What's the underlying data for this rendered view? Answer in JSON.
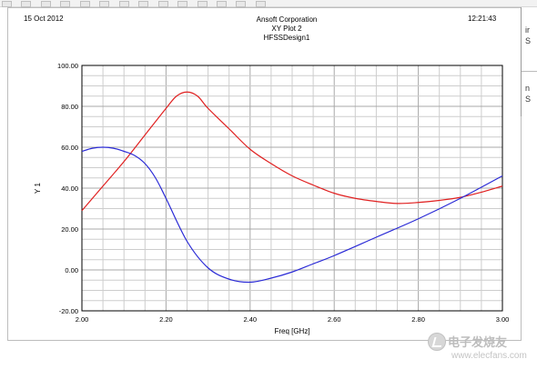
{
  "header": {
    "date": "15 Oct 2012",
    "time": "12:21:43",
    "company": "Ansoft Corporation",
    "plot_name": "XY Plot 2",
    "design_name": "HFSSDesign1"
  },
  "side_panel": {
    "lines": [
      "ir",
      "S",
      "n",
      "S"
    ]
  },
  "watermark": {
    "name": "电子发烧友",
    "url": "www.elecfans.com"
  },
  "chart_data": {
    "type": "line",
    "title": "XY Plot 2",
    "xlabel": "Freq [GHz]",
    "ylabel": "Y 1",
    "xlim": [
      2.0,
      3.0
    ],
    "ylim": [
      -20,
      100
    ],
    "x_ticks": [
      "2.00",
      "2.20",
      "2.40",
      "2.60",
      "2.80",
      "3.00"
    ],
    "y_ticks": [
      "100.00",
      "80.00",
      "60.00",
      "40.00",
      "20.00",
      "0.00",
      "-20.00"
    ],
    "grid": true,
    "series": [
      {
        "color": "#e02020",
        "x": [
          2.0,
          2.05,
          2.1,
          2.15,
          2.2,
          2.225,
          2.25,
          2.275,
          2.3,
          2.35,
          2.4,
          2.45,
          2.5,
          2.55,
          2.6,
          2.65,
          2.7,
          2.75,
          2.8,
          2.85,
          2.9,
          2.95,
          3.0
        ],
        "y": [
          29,
          41,
          53,
          66,
          79,
          85,
          87,
          85,
          79,
          69,
          59,
          52,
          46,
          41.5,
          37.5,
          35,
          33.5,
          32.5,
          33,
          34,
          35.5,
          38,
          41
        ]
      },
      {
        "color": "#2b2bd6",
        "x": [
          2.0,
          2.025,
          2.05,
          2.075,
          2.1,
          2.125,
          2.15,
          2.175,
          2.2,
          2.25,
          2.3,
          2.35,
          2.4,
          2.45,
          2.5,
          2.55,
          2.6,
          2.7,
          2.8,
          2.9,
          3.0
        ],
        "y": [
          58,
          59.5,
          60,
          59.5,
          58,
          56,
          52,
          45,
          35,
          14,
          1,
          -4.5,
          -6,
          -4,
          -1,
          3,
          7,
          16,
          25,
          35,
          46
        ]
      }
    ]
  }
}
